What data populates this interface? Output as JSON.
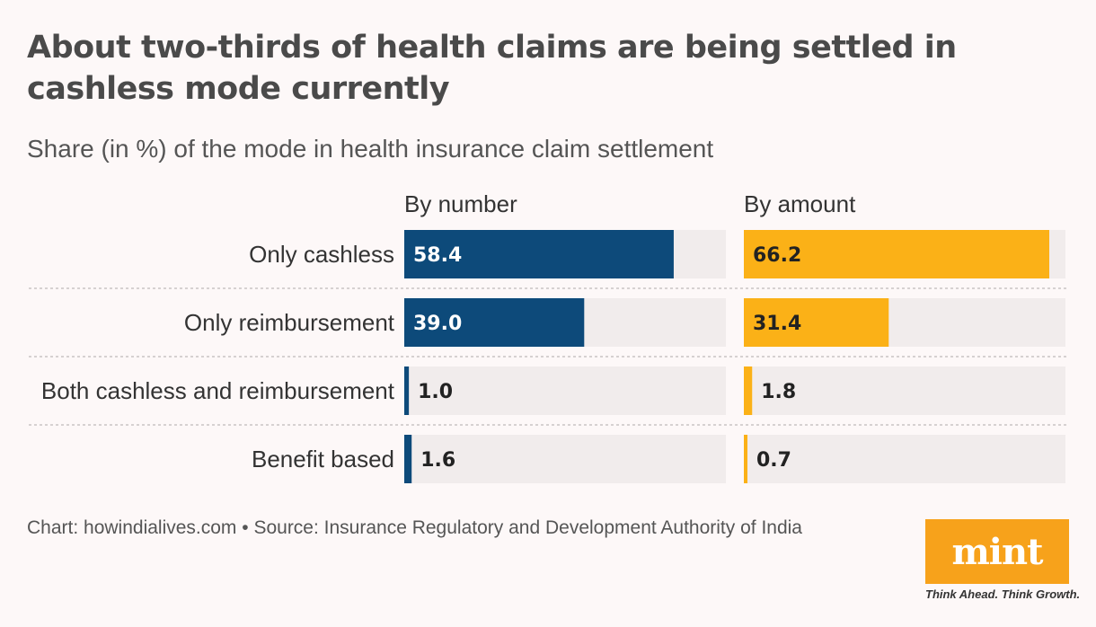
{
  "title": "About two-thirds of health claims are being settled in cashless mode currently",
  "subtitle": "Share (in %) of the mode in health insurance claim settlement",
  "footer": "Chart: howindialives.com • Source: Insurance Regulatory and Development Authority of India",
  "logo": {
    "text": "mint",
    "tagline": "Think Ahead. Think Growth.",
    "color": "#f7a21b"
  },
  "chart_data": {
    "type": "bar",
    "orientation": "horizontal",
    "categories": [
      "Only cashless",
      "Only reimbursement",
      "Both cashless and reimbursement",
      "Benefit based"
    ],
    "xlim": [
      0,
      70
    ],
    "series": [
      {
        "name": "By number",
        "values": [
          58.4,
          39.0,
          1.0,
          1.6
        ],
        "labels": [
          "58.4",
          "39.0",
          "1.0",
          "1.6"
        ],
        "color": "#0d4a7a"
      },
      {
        "name": "By amount",
        "values": [
          66.2,
          31.4,
          1.8,
          0.7
        ],
        "labels": [
          "66.2",
          "31.4",
          "1.8",
          "0.7"
        ],
        "color": "#fbb117"
      }
    ],
    "track_color": "#f1ecec",
    "grid": false
  }
}
